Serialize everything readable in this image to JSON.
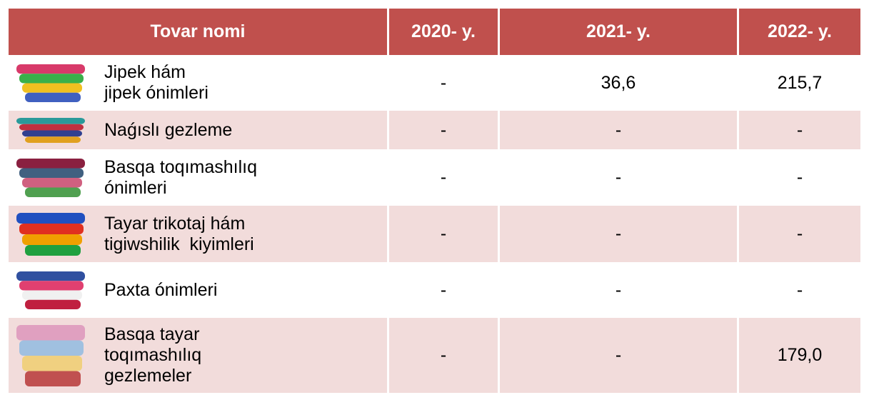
{
  "table": {
    "header": [
      "Tovar nomi",
      "2020- y.",
      "2021- y.",
      "2022- y."
    ],
    "rows": [
      {
        "name": "Jipek hám\njipek ónimleri",
        "values": [
          "-",
          "36,6",
          "215,7"
        ]
      },
      {
        "name": "Naǵıslı gezleme",
        "values": [
          "-",
          "-",
          "-"
        ]
      },
      {
        "name": "Basqa toqımashılıq\nónimleri",
        "values": [
          "-",
          "-",
          "-"
        ]
      },
      {
        "name": "Tayar trikotaj hám\ntigiwshilik  kiyimleri",
        "values": [
          "-",
          "-",
          "-"
        ]
      },
      {
        "name": "Paxta ónimleri",
        "values": [
          "-",
          "-",
          "-"
        ]
      },
      {
        "name": "Basqa tayar\ntoqımashılıq\ngezlemeler",
        "values": [
          "-",
          "-",
          "179,0"
        ]
      }
    ]
  }
}
